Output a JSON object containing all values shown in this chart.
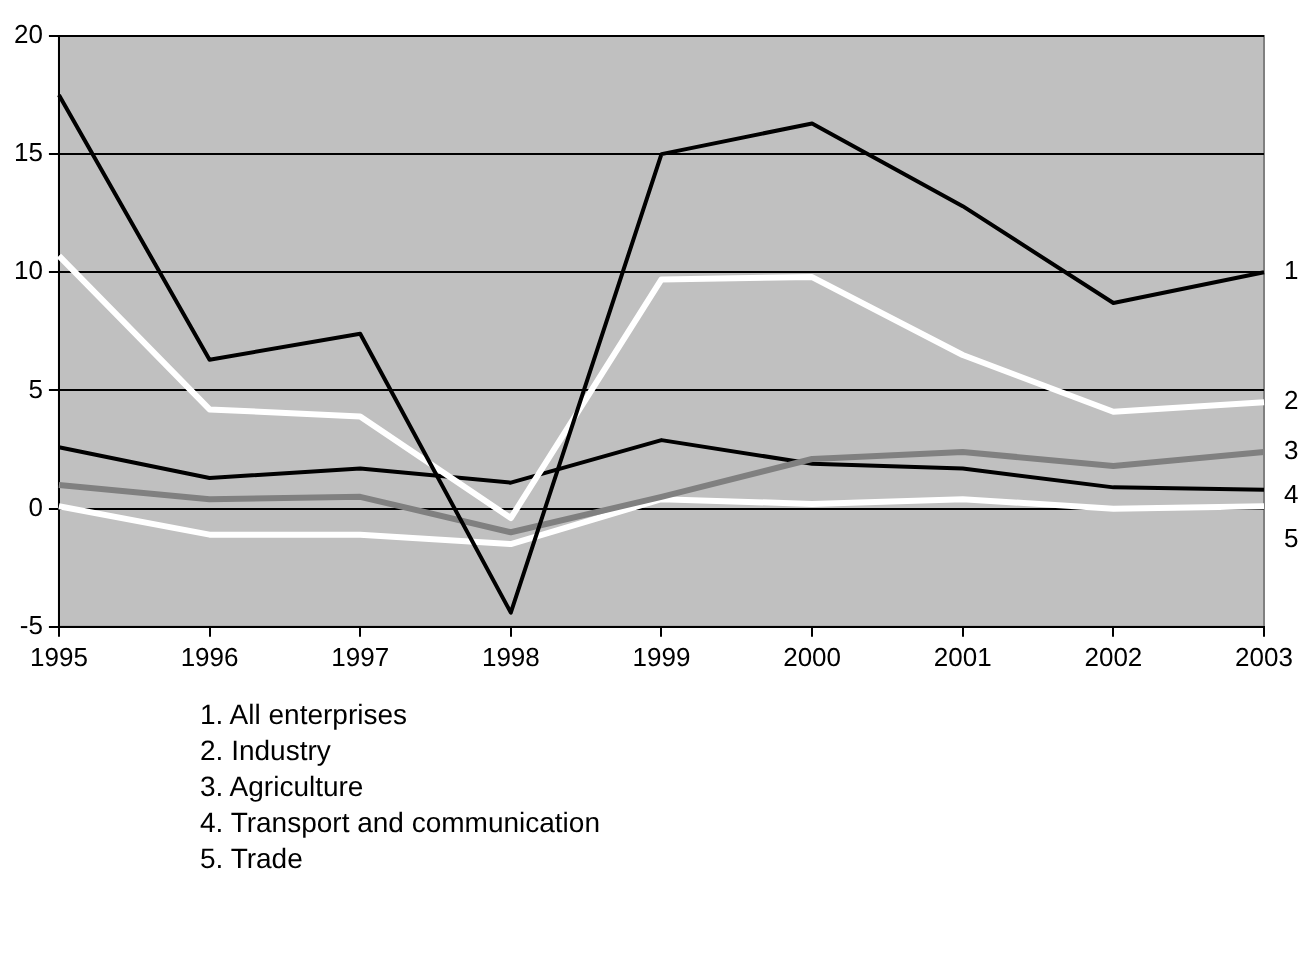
{
  "chart_data": {
    "type": "line",
    "categories": [
      "1995",
      "1996",
      "1997",
      "1998",
      "1999",
      "2000",
      "2001",
      "2002",
      "2003"
    ],
    "series": [
      {
        "name": "1",
        "color": "#000000",
        "values": [
          17.5,
          6.3,
          7.4,
          -4.4,
          15.0,
          16.3,
          12.8,
          8.7,
          10.0
        ]
      },
      {
        "name": "2",
        "color": "#ffffff",
        "values": [
          10.7,
          4.2,
          3.9,
          -0.4,
          9.7,
          9.8,
          6.5,
          4.1,
          4.5
        ]
      },
      {
        "name": "3",
        "color": "#808080",
        "values": [
          1.0,
          0.4,
          0.5,
          -1.0,
          0.5,
          2.1,
          2.4,
          1.8,
          2.4
        ]
      },
      {
        "name": "4",
        "color": "#000000",
        "values": [
          2.6,
          1.3,
          1.7,
          1.1,
          2.9,
          1.9,
          1.7,
          0.9,
          0.8
        ]
      },
      {
        "name": "5",
        "color": "#ffffff",
        "values": [
          0.1,
          -1.1,
          -1.1,
          -1.5,
          0.4,
          0.2,
          0.4,
          0.0,
          0.1
        ]
      }
    ],
    "ylim": [
      -5,
      20
    ],
    "yticks": [
      -5,
      0,
      5,
      10,
      15,
      20
    ],
    "grid": "y",
    "marker": "none",
    "line_style": "solid",
    "annotations": [
      "1. All enterprises",
      "2. Industry",
      "3. Agriculture",
      "4. Transport and communication",
      "5. Trade"
    ]
  }
}
